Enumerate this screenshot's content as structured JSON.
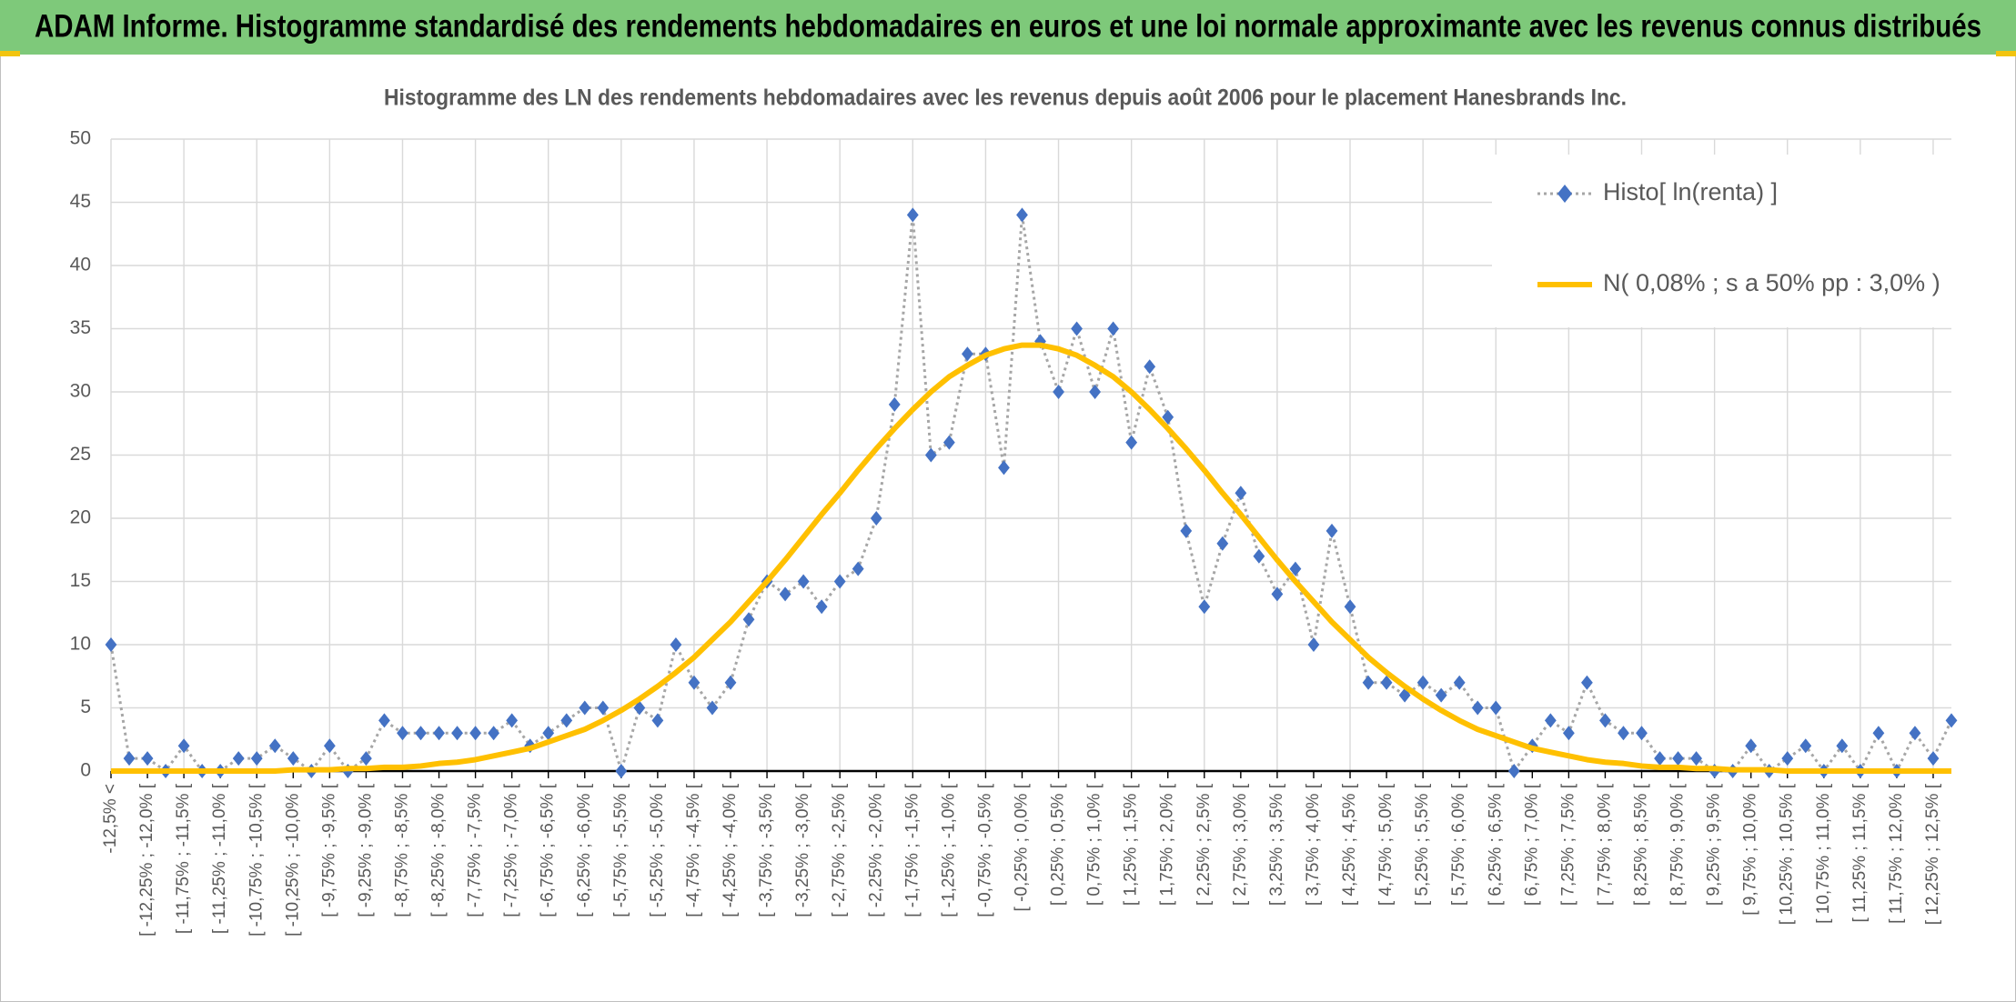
{
  "chart_data": {
    "type": "line",
    "title": "ADAM Informe. Histogramme standardisé des rendements hebdomadaires en euros et une loi normale approximante avec les revenus connus distribués",
    "subtitle": "Histogramme des LN des rendements hebdomadaires avec les revenus depuis août 2006 pour le placement Hanesbrands Inc.",
    "categories": [
      "-12,5% <",
      null,
      "[ -12,25% ; -12,0% [",
      null,
      "[ -11,75% ; -11,5% [",
      null,
      "[ -11,25% ; -11,0% [",
      null,
      "[ -10,75% ; -10,5% [",
      null,
      "[ -10,25% ; -10,0% [",
      null,
      "[ -9,75% ; -9,5% [",
      null,
      "[ -9,25% ; -9,0% [",
      null,
      "[ -8,75% ; -8,5% [",
      null,
      "[ -8,25% ; -8,0% [",
      null,
      "[ -7,75% ; -7,5% [",
      null,
      "[ -7,25% ; -7,0% [",
      null,
      "[ -6,75% ; -6,5% [",
      null,
      "[ -6,25% ; -6,0% [",
      null,
      "[ -5,75% ; -5,5% [",
      null,
      "[ -5,25% ; -5,0% [",
      null,
      "[ -4,75% ; -4,5% [",
      null,
      "[ -4,25% ; -4,0% [",
      null,
      "[ -3,75% ; -3,5% [",
      null,
      "[ -3,25% ; -3,0% [",
      null,
      "[ -2,75% ; -2,5% [",
      null,
      "[ -2,25% ; -2,0% [",
      null,
      "[ -1,75% ; -1,5% [",
      null,
      "[ -1,25% ; -1,0% [",
      null,
      "[ -0,75% ; -0,5% [",
      null,
      "[ -0,25% ; 0,0% [",
      null,
      "[ 0,25% ; 0,5% [",
      null,
      "[ 0,75% ; 1,0% [",
      null,
      "[ 1,25% ; 1,5% [",
      null,
      "[ 1,75% ; 2,0% [",
      null,
      "[ 2,25% ; 2,5% [",
      null,
      "[ 2,75% ; 3,0% [",
      null,
      "[ 3,25% ; 3,5% [",
      null,
      "[ 3,75% ; 4,0% [",
      null,
      "[ 4,25% ; 4,5% [",
      null,
      "[ 4,75% ; 5,0% [",
      null,
      "[ 5,25% ; 5,5% [",
      null,
      "[ 5,75% ; 6,0% [",
      null,
      "[ 6,25% ; 6,5% [",
      null,
      "[ 6,75% ; 7,0% [",
      null,
      "[ 7,25% ; 7,5% [",
      null,
      "[ 7,75% ; 8,0% [",
      null,
      "[ 8,25% ; 8,5% [",
      null,
      "[ 8,75% ; 9,0% [",
      null,
      "[ 9,25% ; 9,5% [",
      null,
      "[ 9,75% ; 10,0% [",
      null,
      "[ 10,25% ; 10,5% [",
      null,
      "[ 10,75% ; 11,0% [",
      null,
      "[ 11,25% ; 11,5% [",
      null,
      "[ 11,75% ; 12,0% [",
      null,
      "[ 12,25% ; 12,5% [",
      null
    ],
    "series": [
      {
        "name": "Histo[ ln(renta) ]",
        "color": "#4472c4",
        "line_color": "#a6a6a6",
        "line_style": "dotted",
        "marker": "diamond",
        "values": [
          10,
          1,
          1,
          0,
          2,
          0,
          0,
          1,
          1,
          2,
          1,
          0,
          2,
          0,
          1,
          4,
          3,
          3,
          3,
          3,
          3,
          3,
          4,
          2,
          3,
          4,
          5,
          5,
          0,
          5,
          4,
          10,
          7,
          5,
          7,
          12,
          15,
          14,
          15,
          13,
          15,
          16,
          20,
          29,
          44,
          25,
          26,
          33,
          33,
          24,
          44,
          34,
          30,
          35,
          30,
          35,
          26,
          32,
          28,
          19,
          13,
          18,
          22,
          17,
          14,
          16,
          10,
          19,
          13,
          7,
          7,
          6,
          7,
          6,
          7,
          5,
          5,
          0,
          2,
          4,
          3,
          7,
          4,
          3,
          3,
          1,
          1,
          1,
          0,
          0,
          2,
          0,
          1,
          2,
          0,
          2,
          0,
          3,
          0,
          3,
          1,
          4
        ]
      },
      {
        "name": "N( 0,08% ; s a 50% pp : 3,0% )",
        "color": "#ffc000",
        "line_style": "solid",
        "marker": "none",
        "values": [
          0,
          0,
          0,
          0,
          0,
          0,
          0,
          0,
          0,
          0,
          0.1,
          0.1,
          0.1,
          0.2,
          0.2,
          0.3,
          0.3,
          0.4,
          0.6,
          0.7,
          0.9,
          1.2,
          1.5,
          1.8,
          2.3,
          2.8,
          3.3,
          4.0,
          4.8,
          5.7,
          6.7,
          7.8,
          9.0,
          10.4,
          11.8,
          13.4,
          15.0,
          16.7,
          18.5,
          20.3,
          22.0,
          23.8,
          25.5,
          27.1,
          28.6,
          30.0,
          31.2,
          32.1,
          32.9,
          33.4,
          33.7,
          33.7,
          33.4,
          32.9,
          32.1,
          31.2,
          30.0,
          28.6,
          27.1,
          25.5,
          23.8,
          22.0,
          20.3,
          18.5,
          16.7,
          15.0,
          13.4,
          11.8,
          10.4,
          9.0,
          7.8,
          6.7,
          5.7,
          4.8,
          4.0,
          3.3,
          2.8,
          2.3,
          1.8,
          1.5,
          1.2,
          0.9,
          0.7,
          0.6,
          0.4,
          0.3,
          0.3,
          0.2,
          0.2,
          0.1,
          0.1,
          0.1,
          0,
          0,
          0,
          0,
          0,
          0,
          0,
          0,
          0,
          0
        ]
      }
    ],
    "ylim": [
      0,
      50
    ],
    "yticks": [
      0,
      5,
      10,
      15,
      20,
      25,
      30,
      35,
      40,
      45,
      50
    ],
    "grid": true,
    "legend": "top-right",
    "header_color": "#7ec97a"
  }
}
